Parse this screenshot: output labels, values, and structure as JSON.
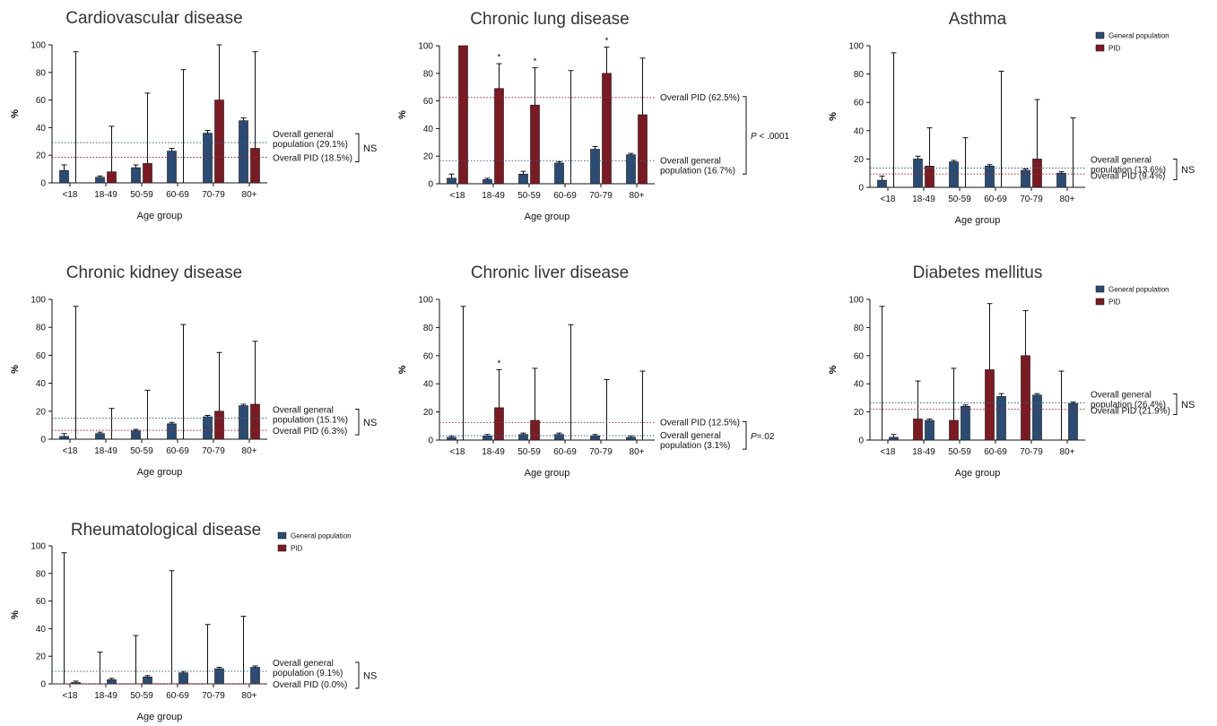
{
  "colors": {
    "general": "#2b4b73",
    "pid": "#7a1b24",
    "general_line": "#3a5f8f",
    "pid_line": "#9a2a33"
  },
  "legend": {
    "general": "General population",
    "pid": "PID"
  },
  "chart_data": [
    {
      "type": "bar",
      "title": "Cardiovascular disease",
      "xlabel": "Age group",
      "ylabel": "%",
      "ylim": [
        0,
        100
      ],
      "yticks": [
        "0",
        "20",
        "40",
        "60",
        "80",
        "100"
      ],
      "categories": [
        "<18",
        "18-49",
        "50-59",
        "60-69",
        "70-79",
        "80+"
      ],
      "series": [
        {
          "name": "General population",
          "values": [
            9,
            4,
            11,
            23,
            36,
            45
          ],
          "errors": [
            4,
            1,
            2,
            2,
            2,
            2
          ]
        },
        {
          "name": "PID",
          "values": [
            0,
            8,
            14,
            0,
            60,
            25
          ],
          "errors": [
            95,
            33,
            51,
            82,
            93,
            70
          ]
        }
      ],
      "ref_general": 29.1,
      "ref_pid": 18.5,
      "ann_general": [
        "Overall general",
        "population (29.1%)"
      ],
      "ann_pid": [
        "Overall PID (18.5%)"
      ],
      "sig": [
        "NS"
      ],
      "bar_stars": [],
      "legend": false
    },
    {
      "type": "bar",
      "title": "Chronic lung disease",
      "xlabel": "Age group",
      "ylabel": "%",
      "ylim": [
        0,
        100
      ],
      "yticks": [
        "0",
        "20",
        "40",
        "60",
        "80",
        "100"
      ],
      "categories": [
        "<18",
        "18-49",
        "50-59",
        "60-69",
        "70-79",
        "80+"
      ],
      "series": [
        {
          "name": "General population",
          "values": [
            4,
            3,
            7,
            15,
            25,
            21
          ],
          "errors": [
            3,
            1,
            2,
            1,
            2,
            1
          ]
        },
        {
          "name": "PID",
          "values": [
            100,
            69,
            57,
            0,
            80,
            50
          ],
          "errors": [
            0,
            18,
            27,
            82,
            19,
            41
          ]
        }
      ],
      "ref_general": 16.7,
      "ref_pid": 62.5,
      "ann_general": [
        "Overall general",
        "population (16.7%)"
      ],
      "ann_pid": [
        "Overall PID (62.5%)"
      ],
      "sig": [
        "P",
        " < .0001"
      ],
      "bar_stars": [
        1,
        2,
        4
      ],
      "legend": false
    },
    {
      "type": "bar",
      "title": "Asthma",
      "xlabel": "Age group",
      "ylabel": "%",
      "ylim": [
        0,
        100
      ],
      "yticks": [
        "0",
        "20",
        "40",
        "60",
        "80",
        "100"
      ],
      "categories": [
        "<18",
        "18-49",
        "50-59",
        "60-69",
        "70-79",
        "80+"
      ],
      "series": [
        {
          "name": "General population",
          "values": [
            5,
            20,
            18,
            15,
            12,
            10
          ],
          "errors": [
            3,
            2,
            1,
            1,
            1,
            1
          ]
        },
        {
          "name": "PID",
          "values": [
            0,
            15,
            0,
            0,
            20,
            0
          ],
          "errors": [
            95,
            27,
            35,
            82,
            42,
            49
          ]
        }
      ],
      "ref_general": 13.6,
      "ref_pid": 9.4,
      "ann_general": [
        "Overall general",
        "population (13.6%)"
      ],
      "ann_pid": [
        "Overall PID (9.4%)"
      ],
      "sig": [
        "NS"
      ],
      "bar_stars": [],
      "legend": true
    },
    {
      "type": "bar",
      "title": "Chronic kidney disease",
      "xlabel": "Age group",
      "ylabel": "%",
      "ylim": [
        0,
        100
      ],
      "yticks": [
        "0",
        "20",
        "40",
        "60",
        "80",
        "100"
      ],
      "categories": [
        "<18",
        "18-49",
        "50-59",
        "60-69",
        "70-79",
        "80+"
      ],
      "series": [
        {
          "name": "General population",
          "values": [
            2,
            4,
            6,
            11,
            16,
            24
          ],
          "errors": [
            2,
            1,
            1,
            1,
            1,
            1
          ]
        },
        {
          "name": "PID",
          "values": [
            0,
            0,
            0,
            0,
            20,
            25
          ],
          "errors": [
            95,
            22,
            35,
            82,
            42,
            45
          ]
        }
      ],
      "ref_general": 15.1,
      "ref_pid": 6.3,
      "ann_general": [
        "Overall general",
        "population (15.1%)"
      ],
      "ann_pid": [
        "Overall PID (6.3%)"
      ],
      "sig": [
        "NS"
      ],
      "bar_stars": [],
      "legend": false
    },
    {
      "type": "bar",
      "title": "Chronic liver disease",
      "xlabel": "Age group",
      "ylabel": "%",
      "ylim": [
        0,
        100
      ],
      "yticks": [
        "0",
        "20",
        "40",
        "60",
        "80",
        "100"
      ],
      "categories": [
        "<18",
        "18-49",
        "50-59",
        "60-69",
        "70-79",
        "80+"
      ],
      "series": [
        {
          "name": "General population",
          "values": [
            2,
            3,
            4,
            4,
            3,
            2
          ],
          "errors": [
            1,
            1,
            1,
            1,
            1,
            1
          ]
        },
        {
          "name": "PID",
          "values": [
            0,
            23,
            14,
            0,
            0,
            0
          ],
          "errors": [
            95,
            27,
            37,
            82,
            43,
            49
          ]
        }
      ],
      "ref_general": 3.1,
      "ref_pid": 12.5,
      "ann_general": [
        "Overall general",
        "population (3.1%)"
      ],
      "ann_pid": [
        "Overall PID (12.5%)"
      ],
      "sig": [
        "P",
        "=.02"
      ],
      "bar_stars": [
        1
      ],
      "legend": false
    },
    {
      "type": "bar",
      "title": "Diabetes mellitus",
      "xlabel": "Age group",
      "ylabel": "%",
      "ylim": [
        0,
        100
      ],
      "yticks": [
        "0",
        "20",
        "40",
        "60",
        "80",
        "100"
      ],
      "categories": [
        "<18",
        "18-49",
        "50-59",
        "60-69",
        "70-79",
        "80+"
      ],
      "series": [
        {
          "name": "PID",
          "values": [
            0,
            15,
            14,
            50,
            60,
            0
          ],
          "errors": [
            95,
            27,
            37,
            47,
            32,
            49
          ]
        },
        {
          "name": "General population",
          "values": [
            2,
            14,
            24,
            31,
            32,
            26
          ],
          "errors": [
            2,
            1,
            1,
            2,
            1,
            1
          ]
        }
      ],
      "ref_general": 26.4,
      "ref_pid": 21.9,
      "ann_general": [
        "Overall general",
        "population (26.4%)"
      ],
      "ann_pid": [
        "Overall PID (21.9%)"
      ],
      "sig": [
        "NS"
      ],
      "bar_stars": [],
      "legend": true
    },
    {
      "type": "bar",
      "title": "Rheumatological disease",
      "xlabel": "Age group",
      "ylabel": "%",
      "ylim": [
        0,
        100
      ],
      "yticks": [
        "0",
        "20",
        "40",
        "60",
        "80",
        "100"
      ],
      "categories": [
        "<18",
        "18-49",
        "50-59",
        "60-69",
        "70-79",
        "80+"
      ],
      "series": [
        {
          "name": "PID",
          "values": [
            0,
            0,
            0,
            0,
            0,
            0
          ],
          "errors": [
            95,
            23,
            35,
            82,
            43,
            49
          ]
        },
        {
          "name": "General population",
          "values": [
            1,
            3,
            5,
            8,
            11,
            12
          ],
          "errors": [
            1,
            1,
            1,
            1,
            1,
            1
          ]
        }
      ],
      "ref_general": 9.1,
      "ref_pid": 0,
      "ann_general": [
        "Overall general",
        "population (9.1%)"
      ],
      "ann_pid": [
        "Overall PID (0.0%)"
      ],
      "sig": [
        "NS"
      ],
      "bar_stars": [],
      "legend": true
    }
  ]
}
